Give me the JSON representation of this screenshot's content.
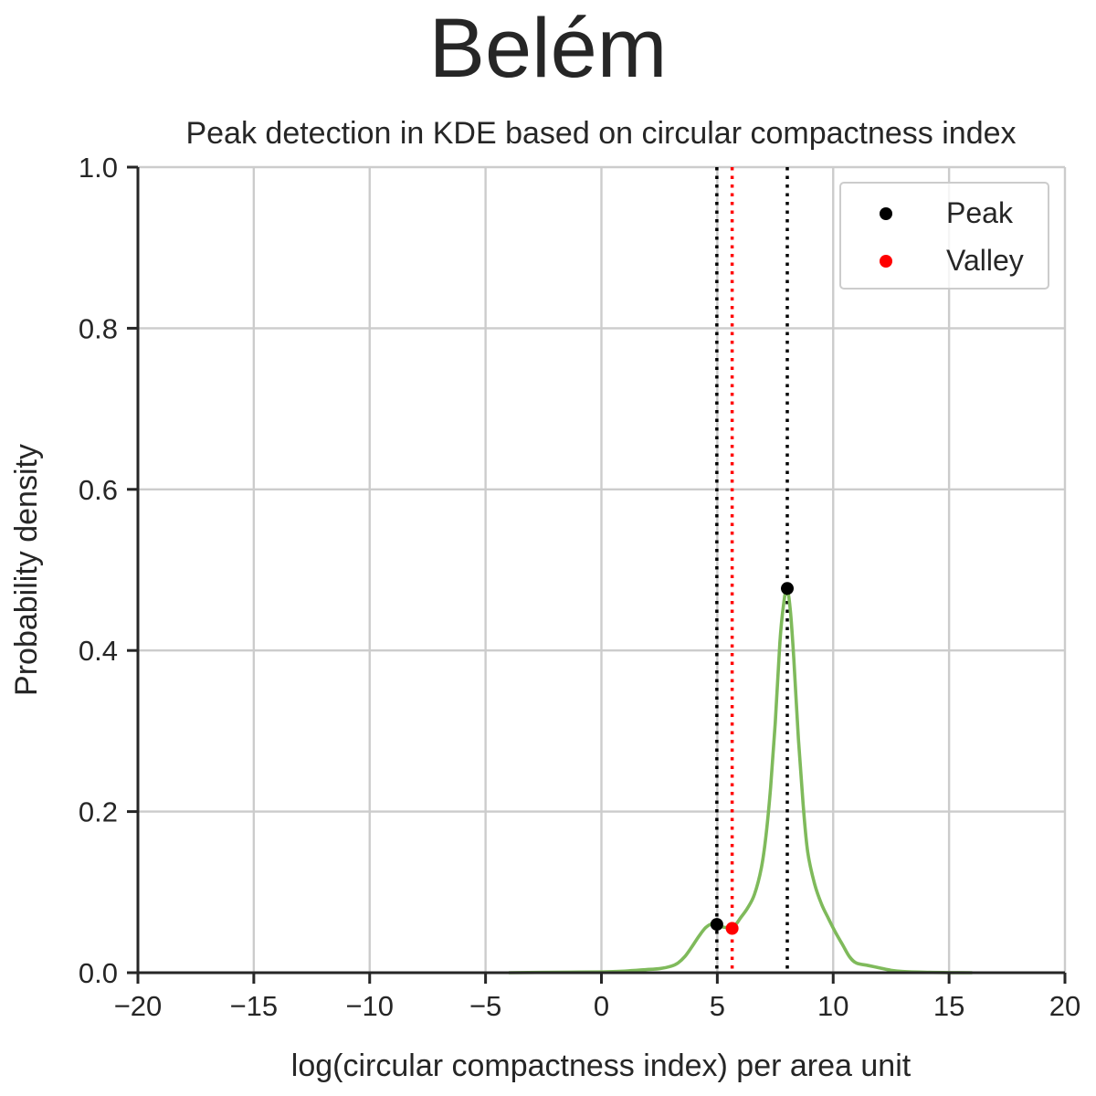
{
  "chart_data": {
    "type": "line",
    "suptitle": "Belém",
    "title": "Peak detection in KDE based on circular compactness index",
    "xlabel": "log(circular compactness index) per area unit",
    "ylabel": "Probability density",
    "xlim": [
      -20,
      20
    ],
    "ylim": [
      0,
      1.0
    ],
    "xticks": [
      -20,
      -15,
      -10,
      -5,
      0,
      5,
      10,
      15,
      20
    ],
    "xtick_labels": [
      "−20",
      "−15",
      "−10",
      "−5",
      "0",
      "5",
      "10",
      "15",
      "20"
    ],
    "yticks": [
      0.0,
      0.2,
      0.4,
      0.6,
      0.8,
      1.0
    ],
    "ytick_labels": [
      "0.0",
      "0.2",
      "0.4",
      "0.6",
      "0.8",
      "1.0"
    ],
    "grid": true,
    "legend_placement": "top-right",
    "series": [
      {
        "color": "#7fba5b",
        "x": [
          -4.0,
          -2.0,
          0.0,
          1.0,
          2.0,
          2.5,
          3.0,
          3.3,
          3.6,
          3.9,
          4.2,
          4.5,
          4.8,
          5.0,
          5.2,
          5.4,
          5.6,
          5.8,
          6.0,
          6.3,
          6.6,
          6.9,
          7.1,
          7.3,
          7.5,
          7.7,
          7.85,
          8.0,
          8.15,
          8.3,
          8.5,
          8.7,
          8.9,
          9.2,
          9.5,
          9.8,
          10.1,
          10.4,
          10.7,
          11.0,
          11.5,
          12.0,
          12.5,
          13.0,
          14.0,
          15.0,
          16.0
        ],
        "y": [
          0.0,
          0.0005,
          0.001,
          0.002,
          0.004,
          0.005,
          0.008,
          0.012,
          0.02,
          0.032,
          0.045,
          0.056,
          0.061,
          0.06,
          0.057,
          0.056,
          0.056,
          0.06,
          0.068,
          0.08,
          0.097,
          0.13,
          0.17,
          0.23,
          0.31,
          0.41,
          0.455,
          0.477,
          0.45,
          0.39,
          0.29,
          0.21,
          0.15,
          0.11,
          0.085,
          0.067,
          0.05,
          0.035,
          0.02,
          0.012,
          0.009,
          0.006,
          0.003,
          0.0015,
          0.0005,
          0.0001,
          0.0
        ]
      }
    ],
    "peaks": [
      {
        "x": 4.98,
        "y": 0.06
      },
      {
        "x": 8.02,
        "y": 0.477
      }
    ],
    "valleys": [
      {
        "x": 5.64,
        "y": 0.055
      }
    ],
    "legend": [
      {
        "label": "Peak",
        "color": "#000000"
      },
      {
        "label": "Valley",
        "color": "#ff0000"
      }
    ],
    "colors": {
      "kde": "#7fba5b",
      "peak": "#000000",
      "valley": "#ff0000",
      "grid": "#cccccc",
      "axis": "#262626"
    }
  }
}
